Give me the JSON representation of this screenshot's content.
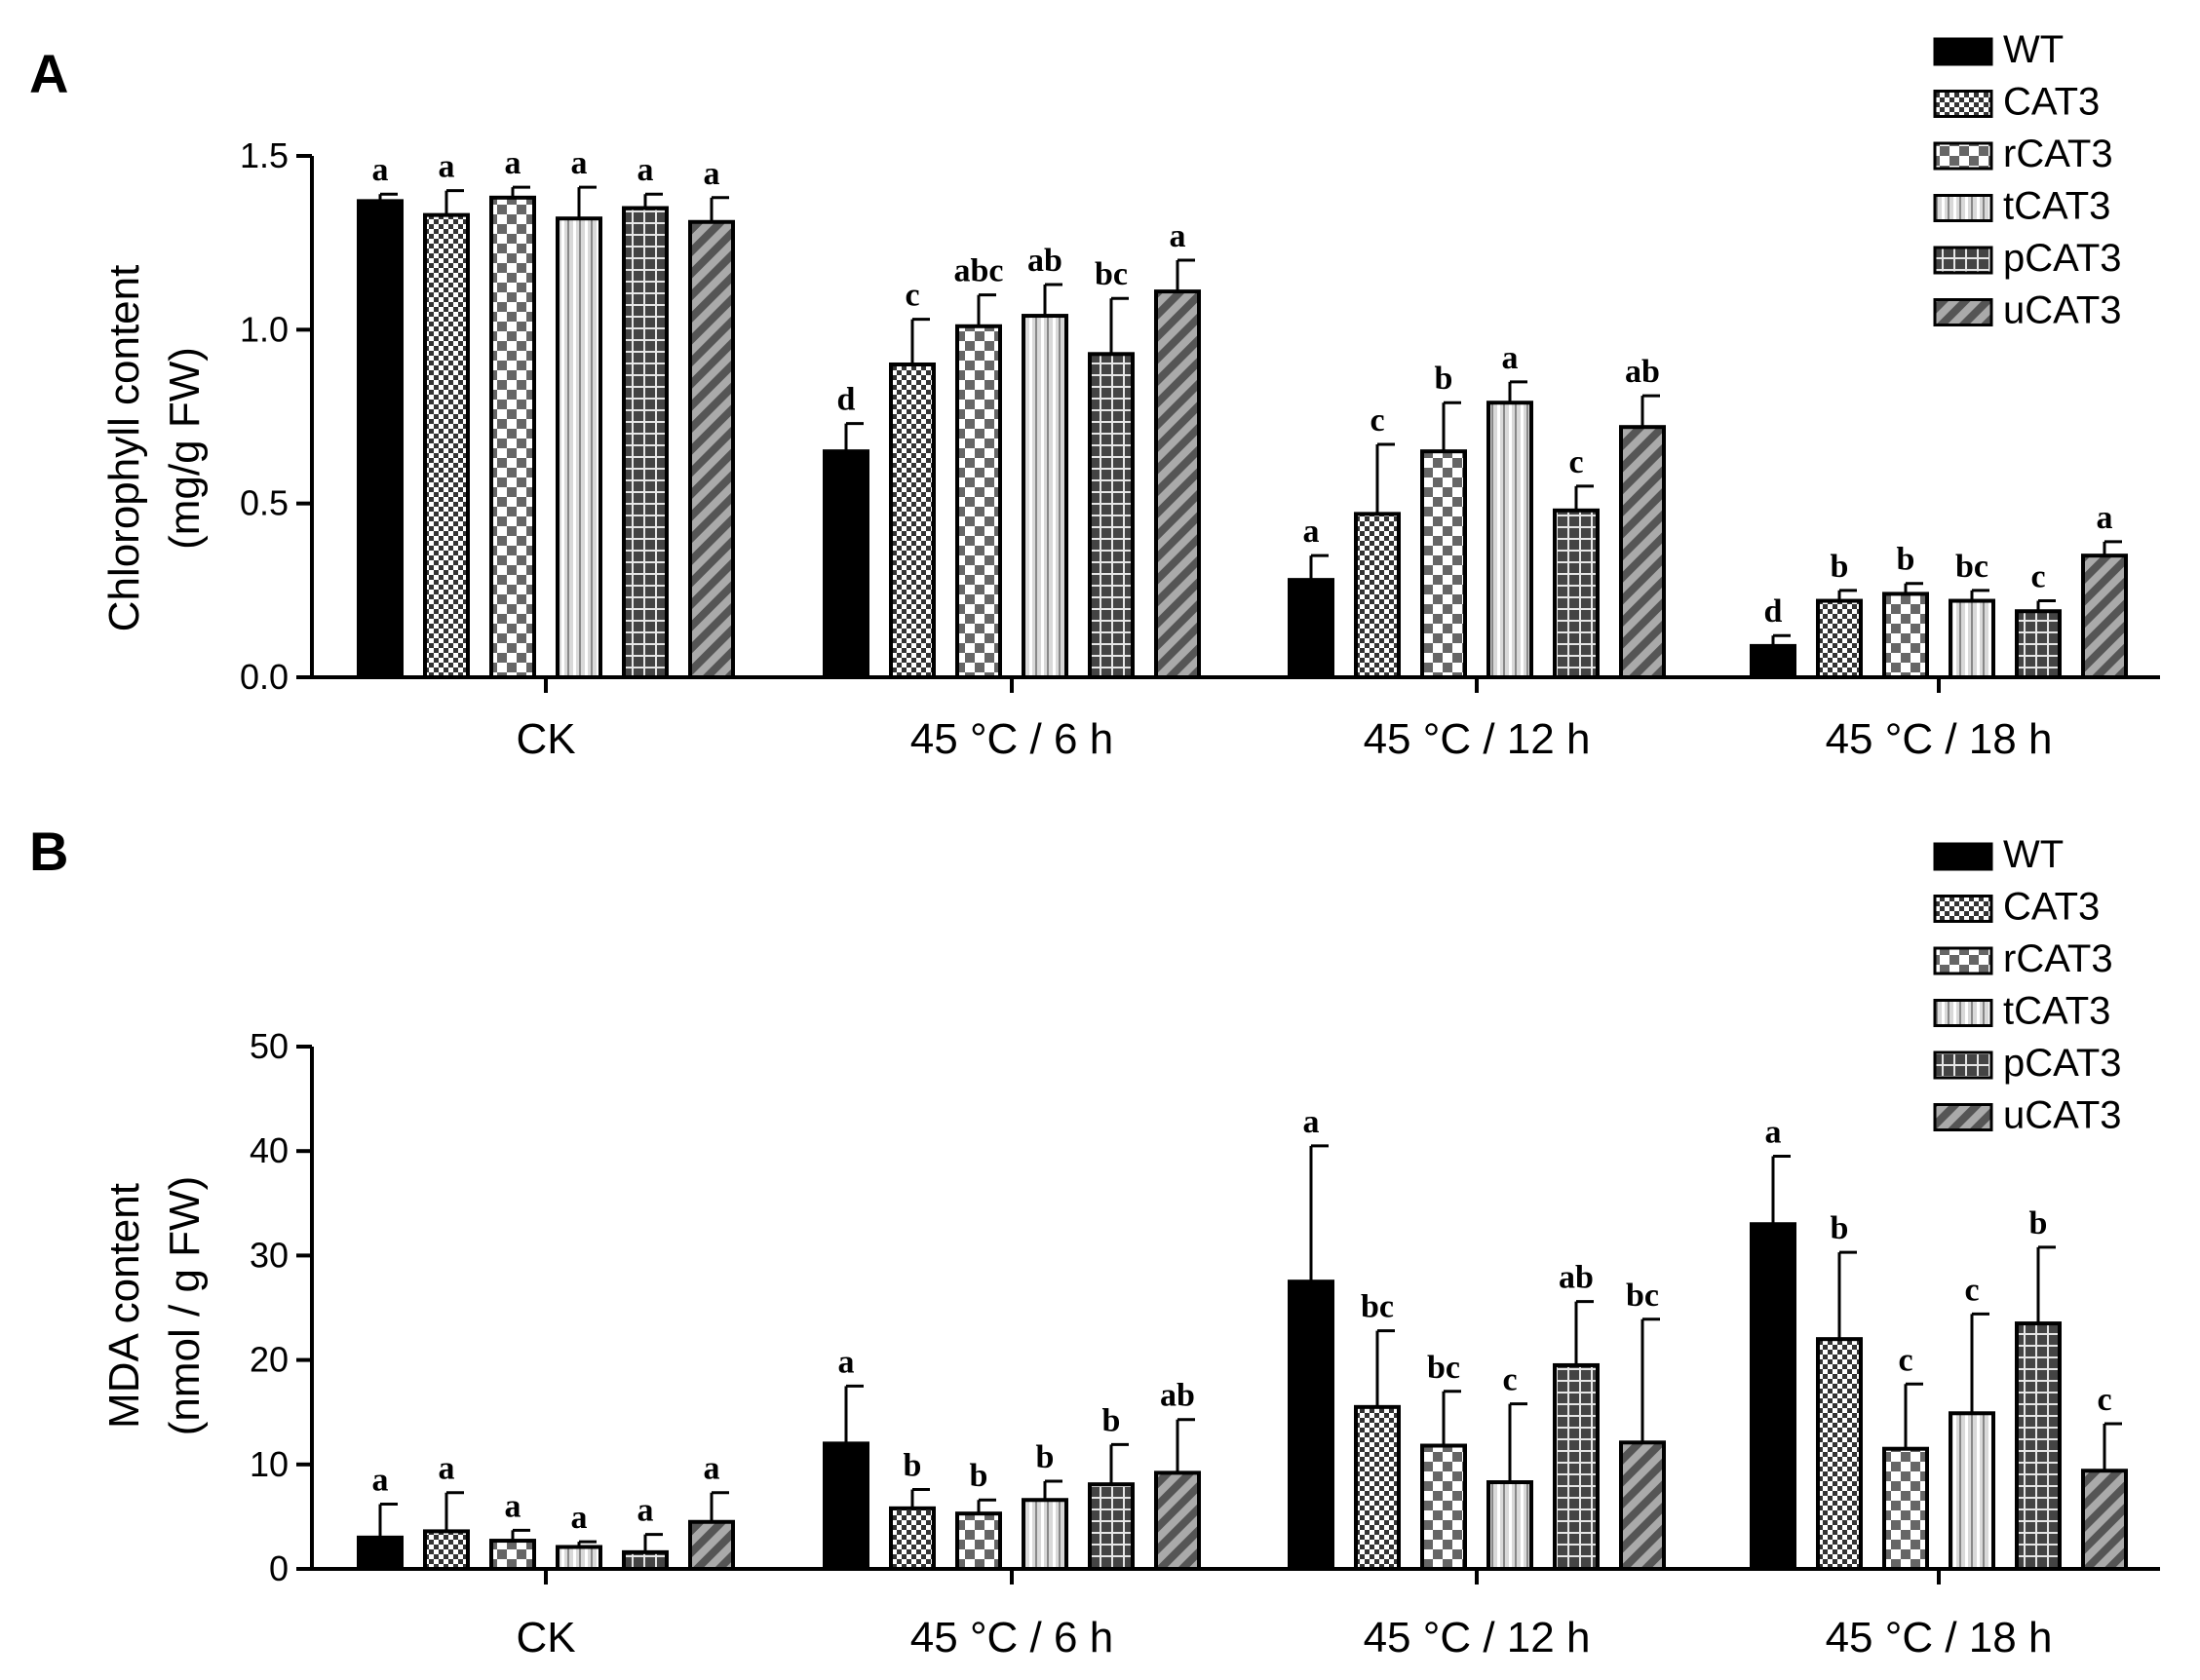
{
  "colors": {
    "bar_outline": "#000000",
    "wt_fill": "#000000",
    "pattern_light": "#ffffff",
    "pattern_dark": "#333333"
  },
  "chart_data": [
    {
      "panel": "A",
      "type": "bar",
      "title": "",
      "xlabel": "",
      "ylabel_line1": "Chlorophyll content",
      "ylabel_line2": "(mg/g FW)",
      "ylim": [
        0,
        1.5
      ],
      "yticks": [
        "0.0",
        "0.5",
        "1.0",
        "1.5"
      ],
      "ytick_values": [
        0,
        0.5,
        1.0,
        1.5
      ],
      "categories": [
        "CK",
        "45 °C / 6 h",
        "45 °C / 12 h",
        "45 °C / 18 h"
      ],
      "legend": [
        "WT",
        "CAT3",
        "rCAT3",
        "tCAT3",
        "pCAT3",
        "uCAT3"
      ],
      "legend_position": "top-right",
      "series": [
        {
          "name": "WT",
          "pattern": "solid",
          "values": [
            1.37,
            0.65,
            0.28,
            0.09
          ],
          "errors": [
            0.02,
            0.08,
            0.07,
            0.03
          ],
          "letters": [
            "a",
            "d",
            "a",
            "d"
          ]
        },
        {
          "name": "CAT3",
          "pattern": "checker",
          "values": [
            1.33,
            0.9,
            0.47,
            0.22
          ],
          "errors": [
            0.07,
            0.13,
            0.2,
            0.03
          ],
          "letters": [
            "a",
            "c",
            "c",
            "b"
          ]
        },
        {
          "name": "rCAT3",
          "pattern": "bigcheck",
          "values": [
            1.38,
            1.01,
            0.65,
            0.24
          ],
          "errors": [
            0.03,
            0.09,
            0.14,
            0.03
          ],
          "letters": [
            "a",
            "abc",
            "b",
            "b"
          ]
        },
        {
          "name": "tCAT3",
          "pattern": "vstripe",
          "values": [
            1.32,
            1.04,
            0.79,
            0.22
          ],
          "errors": [
            0.09,
            0.09,
            0.06,
            0.03
          ],
          "letters": [
            "a",
            "ab",
            "a",
            "bc"
          ]
        },
        {
          "name": "pCAT3",
          "pattern": "grid",
          "values": [
            1.35,
            0.93,
            0.48,
            0.19
          ],
          "errors": [
            0.04,
            0.16,
            0.07,
            0.03
          ],
          "letters": [
            "a",
            "bc",
            "c",
            "c"
          ]
        },
        {
          "name": "uCAT3",
          "pattern": "diag",
          "values": [
            1.31,
            1.11,
            0.72,
            0.35
          ],
          "errors": [
            0.07,
            0.09,
            0.09,
            0.04
          ],
          "letters": [
            "a",
            "a",
            "ab",
            "a"
          ]
        }
      ]
    },
    {
      "panel": "B",
      "type": "bar",
      "title": "",
      "xlabel": "",
      "ylabel_line1": "MDA content",
      "ylabel_line2": "(nmol / g FW)",
      "ylim": [
        0,
        50
      ],
      "yticks": [
        "0",
        "10",
        "20",
        "30",
        "40",
        "50"
      ],
      "ytick_values": [
        0,
        10,
        20,
        30,
        40,
        50
      ],
      "categories": [
        "CK",
        "45 °C / 6 h",
        "45 °C / 12 h",
        "45 °C / 18 h"
      ],
      "legend": [
        "WT",
        "CAT3",
        "rCAT3",
        "tCAT3",
        "pCAT3",
        "uCAT3"
      ],
      "legend_position": "top-right",
      "series": [
        {
          "name": "WT",
          "pattern": "solid",
          "values": [
            3.0,
            12.0,
            27.5,
            33.0
          ],
          "errors": [
            3.2,
            5.5,
            13.0,
            6.5
          ],
          "letters": [
            "a",
            "a",
            "a",
            "a"
          ]
        },
        {
          "name": "CAT3",
          "pattern": "checker",
          "values": [
            3.6,
            5.8,
            15.5,
            22.0
          ],
          "errors": [
            3.7,
            1.8,
            7.3,
            8.3
          ],
          "letters": [
            "a",
            "b",
            "bc",
            "b"
          ]
        },
        {
          "name": "rCAT3",
          "pattern": "bigcheck",
          "values": [
            2.7,
            5.3,
            11.8,
            11.5
          ],
          "errors": [
            1.0,
            1.3,
            5.2,
            6.2
          ],
          "letters": [
            "a",
            "b",
            "bc",
            "c"
          ]
        },
        {
          "name": "tCAT3",
          "pattern": "vstripe",
          "values": [
            2.1,
            6.6,
            8.3,
            14.9
          ],
          "errors": [
            0.5,
            1.8,
            7.5,
            9.5
          ],
          "letters": [
            "a",
            "b",
            "c",
            "c"
          ]
        },
        {
          "name": "pCAT3",
          "pattern": "grid",
          "values": [
            1.6,
            8.1,
            19.5,
            23.5
          ],
          "errors": [
            1.7,
            3.8,
            6.1,
            7.3
          ],
          "letters": [
            "a",
            "b",
            "ab",
            "b"
          ]
        },
        {
          "name": "uCAT3",
          "pattern": "diag",
          "values": [
            4.5,
            9.2,
            12.1,
            9.4
          ],
          "errors": [
            2.8,
            5.1,
            11.8,
            4.5
          ],
          "letters": [
            "a",
            "ab",
            "bc",
            "c"
          ]
        }
      ]
    }
  ]
}
